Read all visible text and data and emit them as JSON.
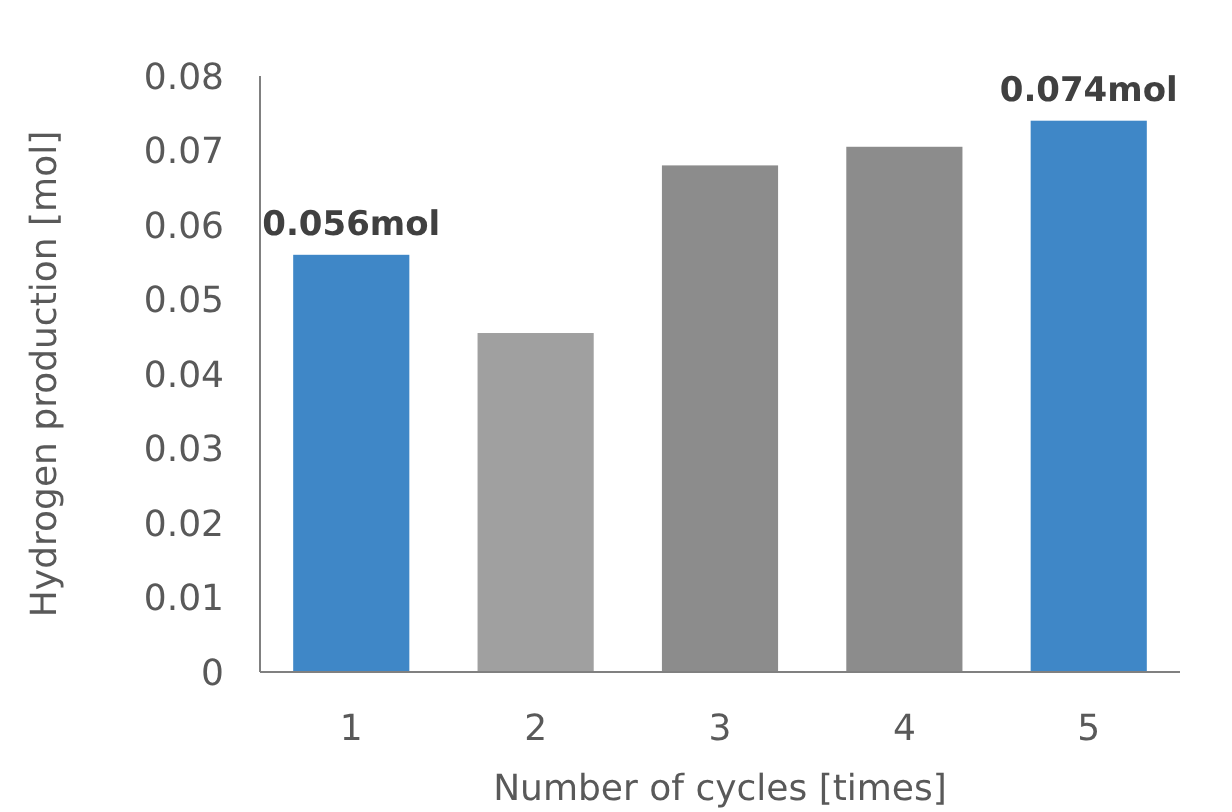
{
  "chart_data": {
    "type": "bar",
    "xlabel": "Number of cycles [times]",
    "ylabel": "Hydrogen production [mol]",
    "categories": [
      "1",
      "2",
      "3",
      "4",
      "5"
    ],
    "values": [
      0.056,
      0.0455,
      0.068,
      0.0705,
      0.074
    ],
    "colors": [
      "#3f87c7",
      "#a0a0a0",
      "#8c8c8c",
      "#8c8c8c",
      "#3f87c7"
    ],
    "value_labels": [
      "0.056mol",
      null,
      null,
      null,
      "0.074mol"
    ],
    "ylim": [
      0,
      0.08
    ],
    "yticks": [
      0,
      0.01,
      0.02,
      0.03,
      0.04,
      0.05,
      0.06,
      0.07,
      0.08
    ],
    "grid": false
  }
}
